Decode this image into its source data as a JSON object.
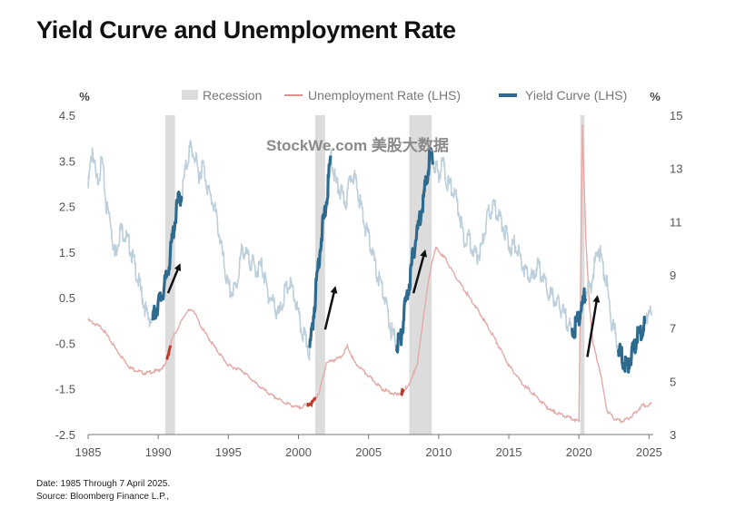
{
  "chart_data": {
    "type": "line",
    "title": "Yield Curve and Unemployment Rate",
    "left_axis": {
      "unit": "%",
      "ylim": [
        -2.5,
        4.5
      ],
      "ticks": [
        4.5,
        3.5,
        2.5,
        1.5,
        0.5,
        -0.5,
        -1.5,
        -2.5
      ]
    },
    "right_axis": {
      "unit": "%",
      "ylim": [
        3,
        15
      ],
      "ticks": [
        15,
        13,
        11,
        9,
        7,
        5,
        3
      ]
    },
    "x_axis": {
      "range": [
        1985,
        2025.3
      ],
      "ticks": [
        1985,
        1990,
        1995,
        2000,
        2005,
        2010,
        2015,
        2020,
        2025
      ]
    },
    "legend": [
      {
        "label": "Recession",
        "color": "#dcdcdc"
      },
      {
        "label": "Unemployment Rate (LHS)",
        "color": "#d9928f"
      },
      {
        "label": "Yield Curve (LHS)",
        "color": "#2e6a8e"
      }
    ],
    "recessions": [
      [
        1990.5,
        1991.2
      ],
      [
        2001.2,
        2001.9
      ],
      [
        2007.9,
        2009.5
      ],
      [
        2020.1,
        2020.4
      ]
    ],
    "series": [
      {
        "name": "Yield Curve",
        "color": "#bccfdb",
        "highlight_color": "#2e6a8e",
        "highlight_ranges": [
          [
            1989.6,
            1991.7
          ],
          [
            2000.8,
            2002.3
          ],
          [
            2007.0,
            2009.6
          ],
          [
            2019.5,
            2020.5
          ],
          [
            2022.8,
            2024.7
          ]
        ],
        "points": [
          [
            1985.0,
            2.9
          ],
          [
            1985.3,
            3.8
          ],
          [
            1985.6,
            3.0
          ],
          [
            1986.0,
            3.5
          ],
          [
            1986.3,
            2.5
          ],
          [
            1986.6,
            2.2
          ],
          [
            1986.9,
            1.4
          ],
          [
            1987.3,
            2.0
          ],
          [
            1987.6,
            1.9
          ],
          [
            1988.0,
            1.6
          ],
          [
            1988.4,
            1.1
          ],
          [
            1988.8,
            0.6
          ],
          [
            1989.2,
            0.1
          ],
          [
            1989.6,
            0.0
          ],
          [
            1989.9,
            0.3
          ],
          [
            1990.2,
            0.5
          ],
          [
            1990.5,
            0.8
          ],
          [
            1990.8,
            1.3
          ],
          [
            1991.1,
            2.0
          ],
          [
            1991.4,
            2.6
          ],
          [
            1991.7,
            2.8
          ],
          [
            1992.0,
            3.4
          ],
          [
            1992.3,
            3.8
          ],
          [
            1992.6,
            3.6
          ],
          [
            1992.9,
            3.2
          ],
          [
            1993.2,
            3.4
          ],
          [
            1993.6,
            2.8
          ],
          [
            1994.0,
            2.5
          ],
          [
            1994.3,
            2.0
          ],
          [
            1994.7,
            1.2
          ],
          [
            1995.0,
            0.7
          ],
          [
            1995.3,
            0.6
          ],
          [
            1995.6,
            0.8
          ],
          [
            1996.0,
            1.6
          ],
          [
            1996.3,
            1.4
          ],
          [
            1996.6,
            1.3
          ],
          [
            1997.0,
            1.1
          ],
          [
            1997.4,
            1.2
          ],
          [
            1997.8,
            0.6
          ],
          [
            1998.2,
            0.4
          ],
          [
            1998.6,
            0.1
          ],
          [
            1999.0,
            0.6
          ],
          [
            1999.4,
            0.8
          ],
          [
            1999.8,
            0.4
          ],
          [
            2000.2,
            -0.2
          ],
          [
            2000.6,
            -0.5
          ],
          [
            2000.8,
            -0.7
          ],
          [
            2001.1,
            0.2
          ],
          [
            2001.4,
            1.2
          ],
          [
            2001.7,
            2.0
          ],
          [
            2002.0,
            2.6
          ],
          [
            2002.3,
            3.6
          ],
          [
            2002.7,
            3.0
          ],
          [
            2003.0,
            2.8
          ],
          [
            2003.4,
            2.6
          ],
          [
            2003.8,
            3.3
          ],
          [
            2004.1,
            3.0
          ],
          [
            2004.4,
            2.6
          ],
          [
            2004.8,
            2.0
          ],
          [
            2005.2,
            1.6
          ],
          [
            2005.6,
            1.0
          ],
          [
            2005.9,
            0.8
          ],
          [
            2006.2,
            0.4
          ],
          [
            2006.6,
            -0.2
          ],
          [
            2007.0,
            -0.5
          ],
          [
            2007.3,
            -0.4
          ],
          [
            2007.6,
            0.3
          ],
          [
            2007.9,
            0.8
          ],
          [
            2008.2,
            1.5
          ],
          [
            2008.5,
            2.0
          ],
          [
            2008.8,
            2.5
          ],
          [
            2009.1,
            3.0
          ],
          [
            2009.4,
            3.7
          ],
          [
            2009.6,
            3.5
          ],
          [
            2010.0,
            3.2
          ],
          [
            2010.3,
            3.5
          ],
          [
            2010.6,
            3.0
          ],
          [
            2011.0,
            2.9
          ],
          [
            2011.4,
            2.5
          ],
          [
            2011.8,
            1.8
          ],
          [
            2012.2,
            1.8
          ],
          [
            2012.6,
            1.4
          ],
          [
            2013.0,
            1.5
          ],
          [
            2013.5,
            2.3
          ],
          [
            2013.9,
            2.5
          ],
          [
            2014.3,
            2.3
          ],
          [
            2014.7,
            2.0
          ],
          [
            2015.1,
            1.6
          ],
          [
            2015.5,
            1.7
          ],
          [
            2015.9,
            1.3
          ],
          [
            2016.3,
            1.0
          ],
          [
            2016.7,
            0.9
          ],
          [
            2017.0,
            1.2
          ],
          [
            2017.4,
            1.0
          ],
          [
            2017.8,
            0.6
          ],
          [
            2018.2,
            0.5
          ],
          [
            2018.6,
            0.3
          ],
          [
            2019.0,
            0.1
          ],
          [
            2019.3,
            -0.1
          ],
          [
            2019.6,
            -0.3
          ],
          [
            2019.9,
            0.0
          ],
          [
            2020.2,
            0.3
          ],
          [
            2020.5,
            0.6
          ],
          [
            2020.8,
            0.7
          ],
          [
            2021.1,
            1.2
          ],
          [
            2021.4,
            1.6
          ],
          [
            2021.7,
            1.2
          ],
          [
            2022.0,
            0.8
          ],
          [
            2022.3,
            0.0
          ],
          [
            2022.6,
            -0.3
          ],
          [
            2022.9,
            -0.7
          ],
          [
            2023.2,
            -0.9
          ],
          [
            2023.5,
            -1.0
          ],
          [
            2023.8,
            -0.7
          ],
          [
            2024.1,
            -0.4
          ],
          [
            2024.4,
            -0.3
          ],
          [
            2024.7,
            -0.1
          ],
          [
            2025.0,
            0.3
          ],
          [
            2025.2,
            0.1
          ]
        ]
      },
      {
        "name": "Unemployment Rate",
        "color": "#e3aaa7",
        "highlight_color": "#c0392b",
        "points": [
          [
            1985.0,
            7.3
          ],
          [
            1986.0,
            7.0
          ],
          [
            1987.0,
            6.2
          ],
          [
            1988.0,
            5.5
          ],
          [
            1989.0,
            5.3
          ],
          [
            1990.0,
            5.4
          ],
          [
            1990.5,
            5.6
          ],
          [
            1991.0,
            6.6
          ],
          [
            1992.0,
            7.6
          ],
          [
            1992.5,
            7.7
          ],
          [
            1993.0,
            7.1
          ],
          [
            1994.0,
            6.3
          ],
          [
            1995.0,
            5.6
          ],
          [
            1996.0,
            5.4
          ],
          [
            1997.0,
            4.9
          ],
          [
            1998.0,
            4.5
          ],
          [
            1999.0,
            4.2
          ],
          [
            2000.0,
            4.0
          ],
          [
            2001.0,
            4.2
          ],
          [
            2001.5,
            4.6
          ],
          [
            2002.0,
            5.7
          ],
          [
            2003.0,
            5.9
          ],
          [
            2003.5,
            6.3
          ],
          [
            2004.0,
            5.7
          ],
          [
            2005.0,
            5.2
          ],
          [
            2006.0,
            4.7
          ],
          [
            2007.0,
            4.5
          ],
          [
            2007.5,
            4.6
          ],
          [
            2008.0,
            5.0
          ],
          [
            2008.5,
            5.7
          ],
          [
            2009.0,
            7.8
          ],
          [
            2009.5,
            9.5
          ],
          [
            2009.8,
            10.0
          ],
          [
            2010.5,
            9.6
          ],
          [
            2011.0,
            9.1
          ],
          [
            2012.0,
            8.3
          ],
          [
            2013.0,
            7.5
          ],
          [
            2014.0,
            6.6
          ],
          [
            2015.0,
            5.6
          ],
          [
            2016.0,
            4.9
          ],
          [
            2017.0,
            4.4
          ],
          [
            2018.0,
            3.9
          ],
          [
            2019.0,
            3.7
          ],
          [
            2020.0,
            3.5
          ],
          [
            2020.25,
            14.7
          ],
          [
            2020.5,
            10.2
          ],
          [
            2020.75,
            7.9
          ],
          [
            2021.0,
            6.4
          ],
          [
            2021.5,
            5.4
          ],
          [
            2022.0,
            3.9
          ],
          [
            2022.5,
            3.6
          ],
          [
            2023.0,
            3.5
          ],
          [
            2023.5,
            3.6
          ],
          [
            2024.0,
            3.8
          ],
          [
            2024.5,
            4.1
          ],
          [
            2025.0,
            4.1
          ],
          [
            2025.2,
            4.2
          ]
        ],
        "highlight_ranges": [
          [
            1990.6,
            1990.9
          ],
          [
            2000.6,
            2001.2
          ],
          [
            2007.3,
            2007.5
          ]
        ]
      }
    ]
  },
  "watermark": "StockWe.com 美股大数据",
  "footnotes": {
    "date": "Date: 1985 Through 7 April 2025.",
    "source": "Source: Bloomberg Finance L.P.,"
  },
  "arrows": [
    {
      "from": [
        1990.7,
        0.6
      ],
      "to": [
        1991.5,
        1.2
      ]
    },
    {
      "from": [
        2001.9,
        -0.2
      ],
      "to": [
        2002.6,
        0.7
      ]
    },
    {
      "from": [
        2008.2,
        0.6
      ],
      "to": [
        2009.0,
        1.5
      ]
    },
    {
      "from": [
        2020.6,
        -0.8
      ],
      "to": [
        2021.3,
        0.5
      ]
    }
  ]
}
